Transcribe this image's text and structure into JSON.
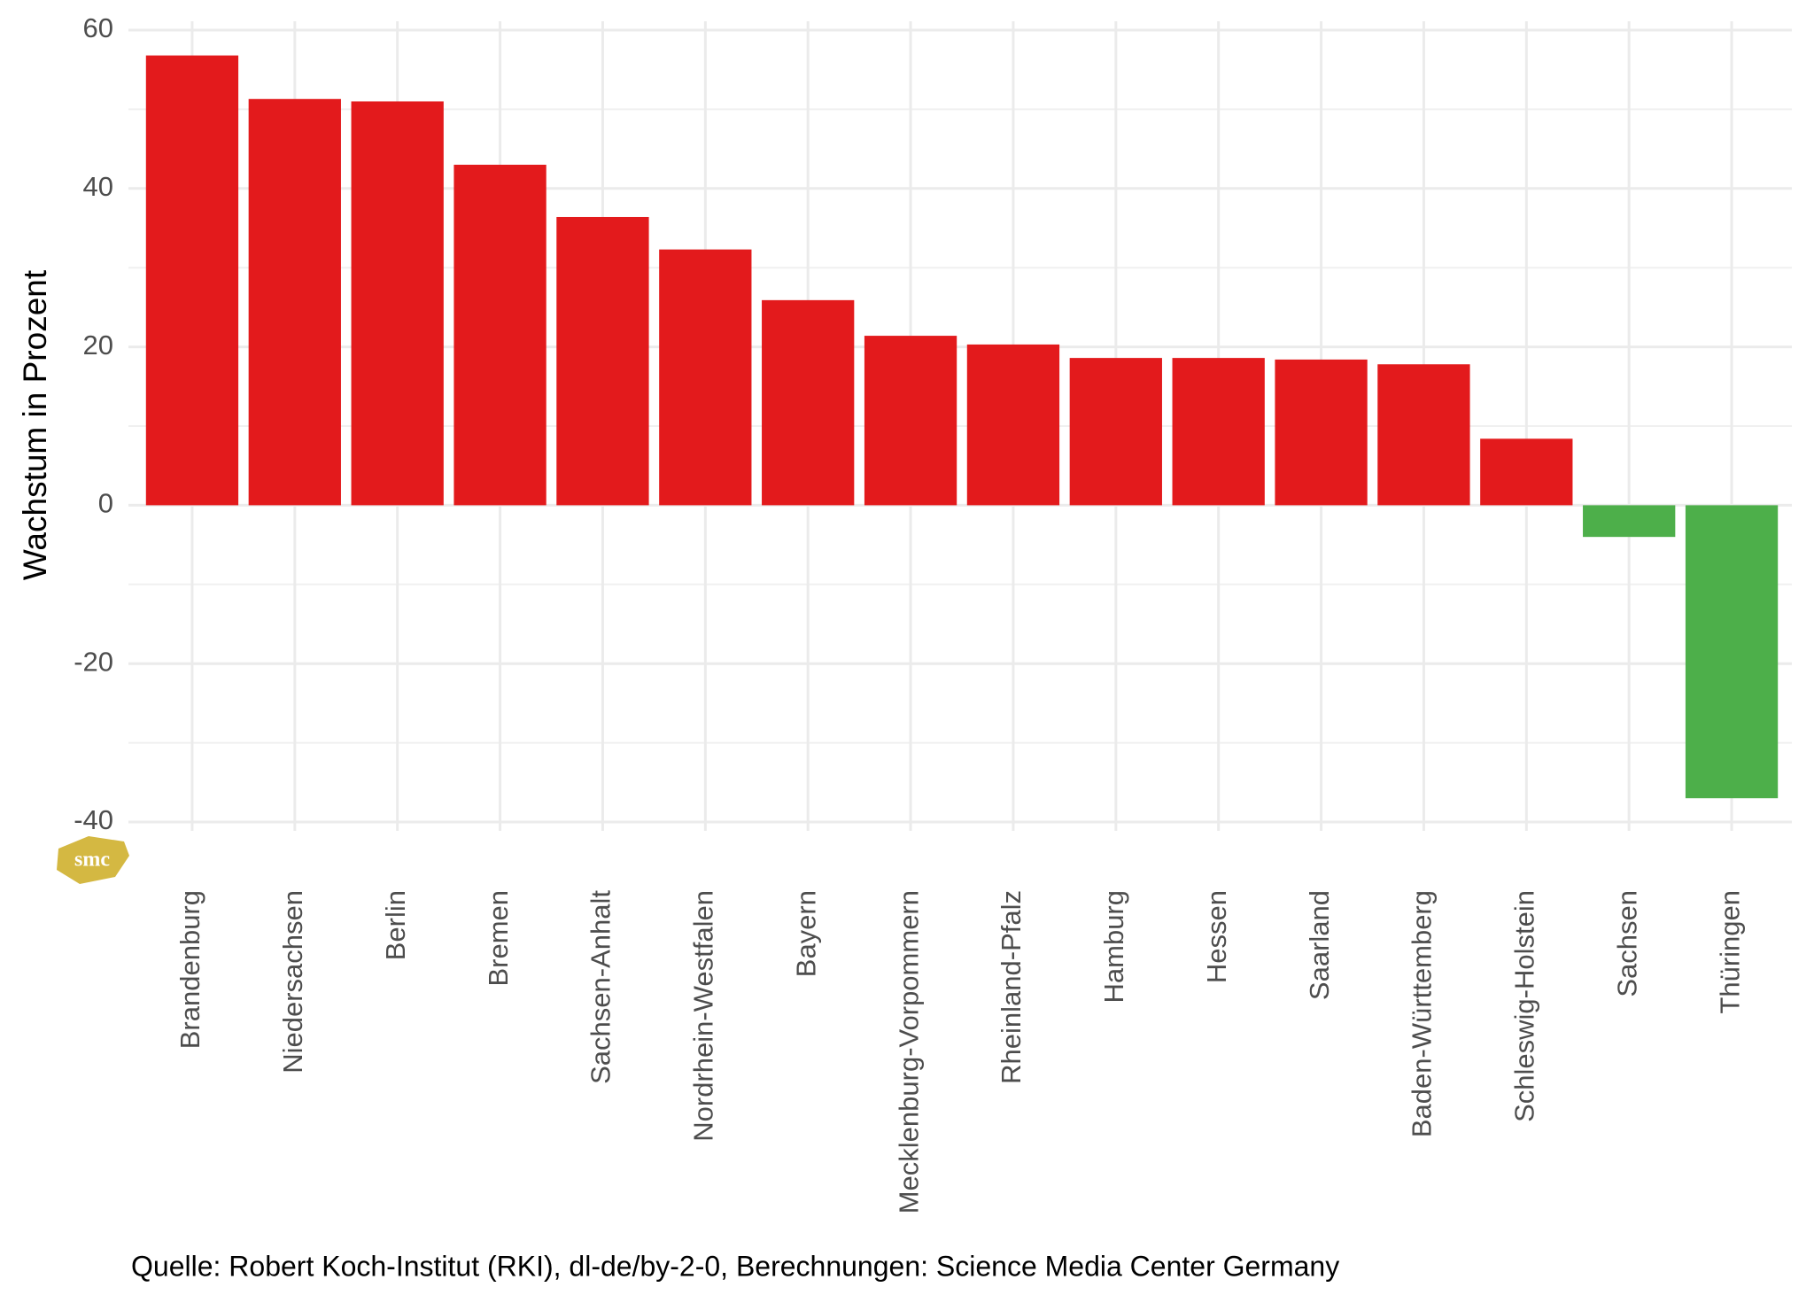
{
  "chart_data": {
    "type": "bar",
    "y_label": "Wachstum in Prozent",
    "caption": "Quelle: Robert Koch-Institut (RKI), dl-de/by-2-0, Berechnungen: Science Media Center Germany",
    "logo": "smc",
    "categories": [
      "Brandenburg",
      "Niedersachsen",
      "Berlin",
      "Bremen",
      "Sachsen-Anhalt",
      "Nordrhein-Westfalen",
      "Bayern",
      "Mecklenburg-Vorpommern",
      "Rheinland-Pfalz",
      "Hamburg",
      "Hessen",
      "Saarland",
      "Baden-Württemberg",
      "Schleswig-Holstein",
      "Sachsen",
      "Thüringen"
    ],
    "values": [
      56.8,
      51.3,
      51.0,
      43.0,
      36.4,
      32.3,
      25.9,
      21.4,
      20.3,
      18.6,
      18.6,
      18.4,
      17.8,
      8.4,
      -4.0,
      -37.0
    ],
    "colors": [
      "#e31a1c",
      "#e31a1c",
      "#e31a1c",
      "#e31a1c",
      "#e31a1c",
      "#e31a1c",
      "#e31a1c",
      "#e31a1c",
      "#e31a1c",
      "#e31a1c",
      "#e31a1c",
      "#e31a1c",
      "#e31a1c",
      "#e31a1c",
      "#4daf4a",
      "#4daf4a"
    ],
    "ylim": [
      -40,
      60
    ],
    "yticks": [
      -40,
      -20,
      0,
      20,
      40,
      60
    ],
    "grid": true
  }
}
